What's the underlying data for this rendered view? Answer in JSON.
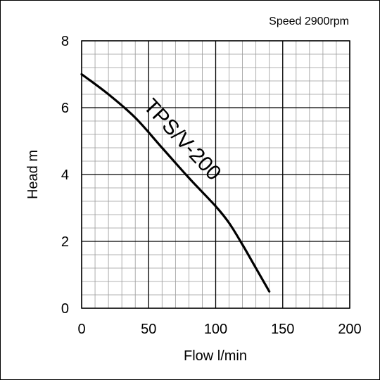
{
  "chart_data": {
    "type": "line",
    "title": "Speed 2900rpm",
    "xlabel": "Flow l/min",
    "ylabel": "Head m",
    "xlim": [
      0,
      200
    ],
    "ylim": [
      0,
      8
    ],
    "x_ticks": [
      "0",
      "50",
      "100",
      "150",
      "200"
    ],
    "y_ticks": [
      "0",
      "2",
      "4",
      "6",
      "8"
    ],
    "grid": true,
    "series": [
      {
        "name": "TPS/V-200",
        "x": [
          0,
          20,
          40,
          60,
          80,
          100,
          110,
          120,
          130,
          140
        ],
        "y": [
          7.0,
          6.4,
          5.7,
          4.8,
          3.9,
          3.05,
          2.55,
          1.9,
          1.2,
          0.5
        ]
      }
    ]
  }
}
